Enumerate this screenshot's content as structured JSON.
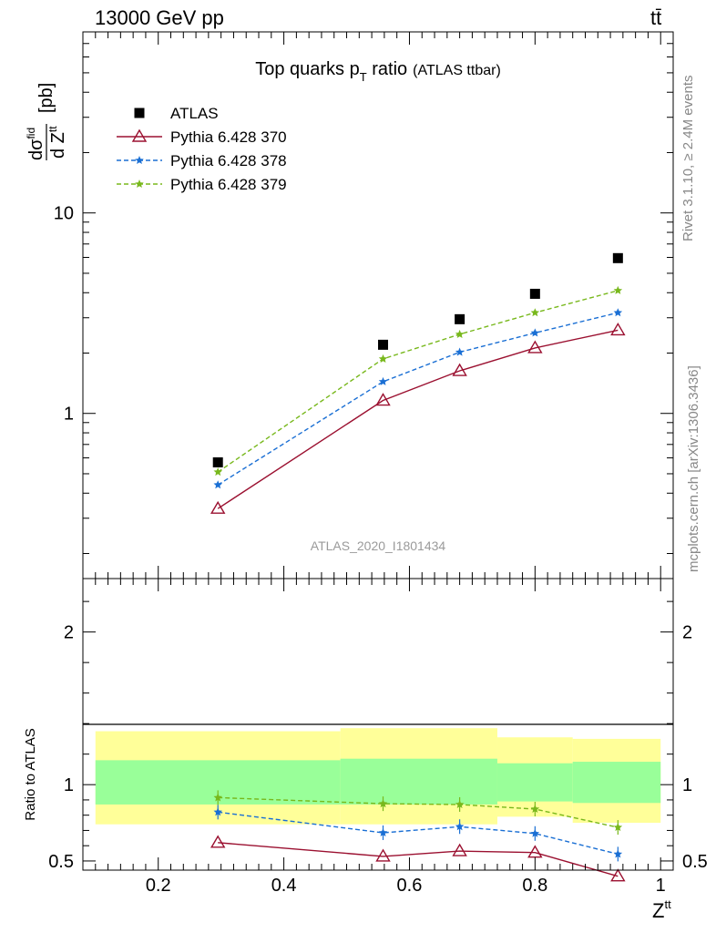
{
  "header": {
    "energy_label": "13000 GeV pp",
    "process_label": "tt̄"
  },
  "side_labels": {
    "rivet": "Rivet 3.1.10, ≥ 2.4M events",
    "mcplots": "mcplots.cern.ch [arXiv:1306.3436]"
  },
  "chart_data": [
    {
      "type": "scatter",
      "panel": "main",
      "title": "Top quarks p",
      "title_subscript": "T",
      "title_rest": " ratio",
      "title_suffix": "(ATLAS ttbar)",
      "ylabel": "dσfid/dZtt [pb]",
      "ylabel_parts": {
        "d_top": "dσ",
        "sup_top": "fid",
        "d_bottom": "d Z",
        "sup_bottom": "tt",
        "unit": "[pb]"
      },
      "yscale": "log",
      "ylim": [
        0.15,
        80
      ],
      "xlim": [
        0.08,
        1.02
      ],
      "yticks": [
        1,
        10
      ],
      "yticklabels": [
        "1",
        "10"
      ],
      "analysis_label": "ATLAS_2020_I1801434",
      "x": [
        0.295,
        0.558,
        0.68,
        0.8,
        0.932
      ],
      "series": [
        {
          "name": "ATLAS",
          "marker": "square",
          "color": "#000000",
          "values": [
            0.57,
            2.2,
            2.95,
            3.95,
            5.95
          ]
        },
        {
          "name": "Pythia 6.428 370",
          "marker": "triangle",
          "line": "solid",
          "color": "#9b1030",
          "values": [
            0.335,
            1.16,
            1.63,
            2.12,
            2.6
          ]
        },
        {
          "name": "Pythia 6.428 378",
          "marker": "star",
          "line": "dashed",
          "color": "#1a6fd4",
          "values": [
            0.44,
            1.44,
            2.02,
            2.52,
            3.18
          ]
        },
        {
          "name": "Pythia 6.428 379",
          "marker": "star",
          "line": "dashed",
          "color": "#78b81c",
          "values": [
            0.51,
            1.87,
            2.48,
            3.18,
            4.1
          ]
        }
      ]
    },
    {
      "type": "line",
      "panel": "ratio",
      "ylabel": "Ratio to ATLAS",
      "xlabel": "Ztt",
      "xlabel_parts": {
        "base": "Z",
        "sup": "tt"
      },
      "xlim": [
        0.08,
        1.02
      ],
      "ylim": [
        0.44,
        2.35
      ],
      "xticks": [
        0.2,
        0.4,
        0.6,
        0.8,
        1.0
      ],
      "xticklabels": [
        "0.2",
        "0.4",
        "0.6",
        "0.8",
        "1"
      ],
      "yticks": [
        0.5,
        1,
        2
      ],
      "yticklabels": [
        "0.5",
        "1",
        "2"
      ],
      "bands": [
        {
          "x_range": [
            0.1,
            0.49
          ],
          "green": [
            0.87,
            1.16
          ],
          "yellow": [
            0.74,
            1.35
          ]
        },
        {
          "x_range": [
            0.49,
            0.74
          ],
          "green": [
            0.87,
            1.17
          ],
          "yellow": [
            0.74,
            1.37
          ]
        },
        {
          "x_range": [
            0.74,
            0.86
          ],
          "green": [
            0.89,
            1.14
          ],
          "yellow": [
            0.79,
            1.31
          ]
        },
        {
          "x_range": [
            0.86,
            1.0
          ],
          "green": [
            0.88,
            1.15
          ],
          "yellow": [
            0.75,
            1.3
          ]
        }
      ],
      "x": [
        0.295,
        0.558,
        0.68,
        0.8,
        0.932
      ],
      "series": [
        {
          "name": "Pythia 6.428 370",
          "marker": "triangle",
          "line": "solid",
          "color": "#9b1030",
          "values": [
            0.62,
            0.53,
            0.565,
            0.555,
            0.4
          ]
        },
        {
          "name": "Pythia 6.428 378",
          "marker": "star",
          "line": "dashed",
          "color": "#1a6fd4",
          "values": [
            0.82,
            0.685,
            0.725,
            0.68,
            0.545
          ]
        },
        {
          "name": "Pythia 6.428 379",
          "marker": "star",
          "line": "dashed",
          "color": "#78b81c",
          "values": [
            0.915,
            0.875,
            0.87,
            0.84,
            0.72
          ]
        }
      ],
      "colors": {
        "green_band": "#99ff99",
        "yellow_band": "#ffff99"
      }
    }
  ]
}
